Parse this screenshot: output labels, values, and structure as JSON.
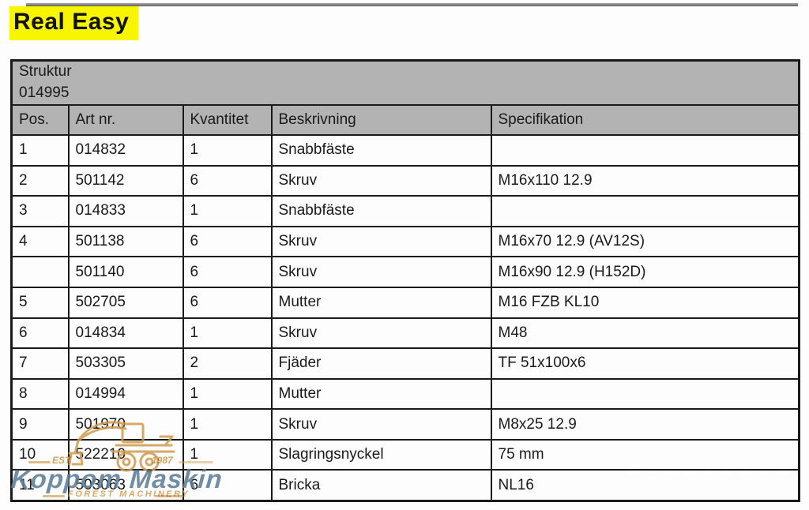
{
  "page_title": "Real Easy",
  "table": {
    "caption_line1": "Struktur",
    "caption_line2": "014995",
    "columns": [
      "Pos.",
      "Art nr.",
      "Kvantitet",
      "Beskrivning",
      "Specifikation"
    ],
    "rows": [
      [
        "1",
        "014832",
        "1",
        "Snabbfäste",
        ""
      ],
      [
        "2",
        "501142",
        "6",
        "Skruv",
        "M16x110 12.9"
      ],
      [
        "3",
        "014833",
        "1",
        "Snabbfäste",
        ""
      ],
      [
        "4",
        "501138",
        "6",
        "Skruv",
        "M16x70 12.9 (AV12S)"
      ],
      [
        "",
        "501140",
        "6",
        "Skruv",
        "M16x90 12.9 (H152D)"
      ],
      [
        "5",
        "502705",
        "6",
        "Mutter",
        "M16 FZB KL10"
      ],
      [
        "6",
        "014834",
        "1",
        "Skruv",
        "M48"
      ],
      [
        "7",
        "503305",
        "2",
        "Fjäder",
        "TF 51x100x6"
      ],
      [
        "8",
        "014994",
        "1",
        "Mutter",
        ""
      ],
      [
        "9",
        "501970",
        "1",
        "Skruv",
        "M8x25 12.9"
      ],
      [
        "10",
        "522210",
        "1",
        "Slagringsnyckel",
        "75 mm"
      ],
      [
        "11",
        "503063",
        "6",
        "Bricka",
        "NL16"
      ]
    ]
  },
  "watermark": {
    "logo_icon": "forestry-machine-icon",
    "est_label": "EST",
    "year": "1987",
    "name": "Koppom Maskin",
    "tagline": "FOREST MACHINERY"
  },
  "colors": {
    "highlight": "#f7f500",
    "header_bg": "#b3b3b3",
    "border": "#1a1a1a",
    "watermark_blue": "#5d7d96",
    "watermark_orange": "#cf9a4e"
  }
}
